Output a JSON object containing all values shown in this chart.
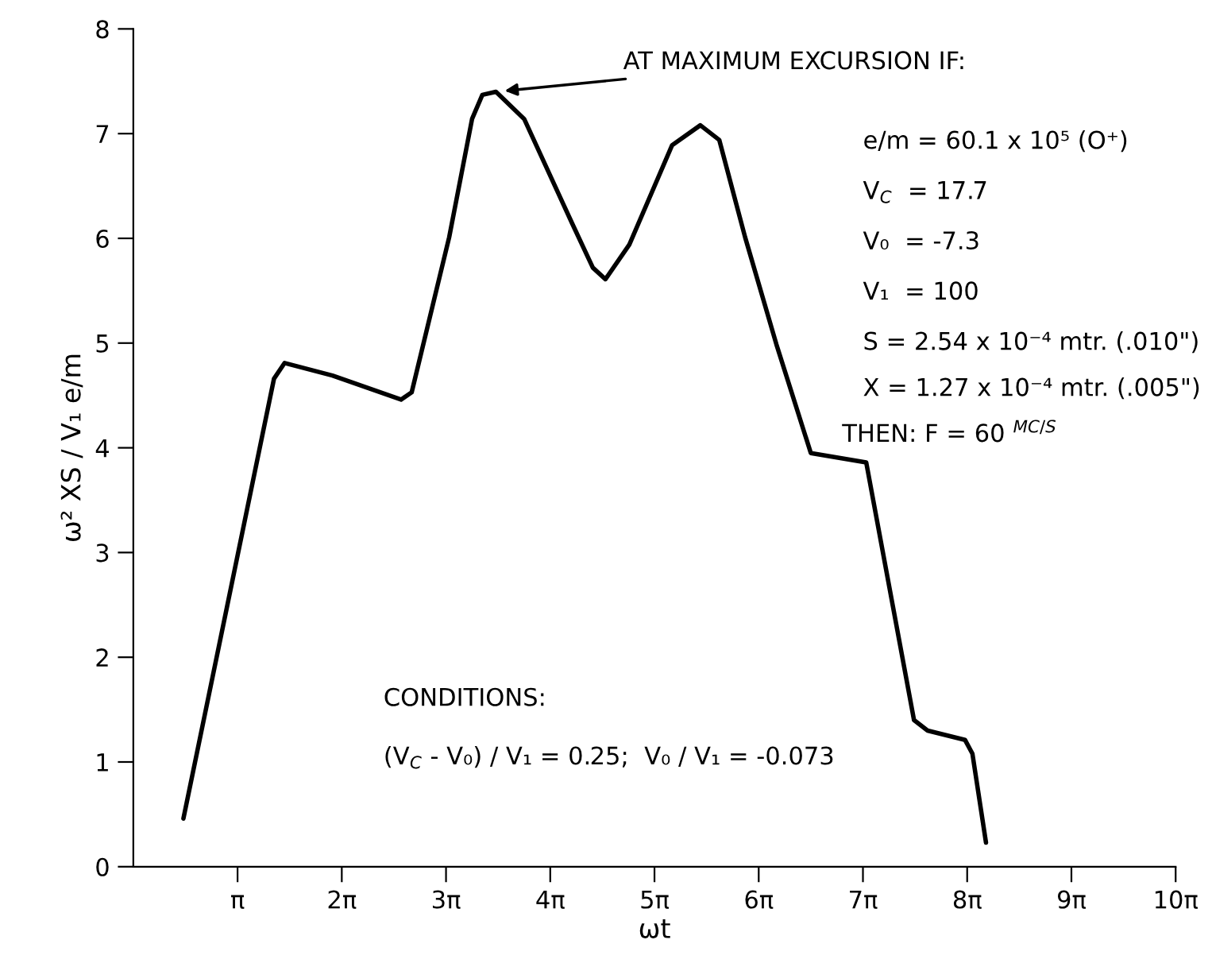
{
  "chart_data": {
    "type": "line",
    "xlabel": "ωt",
    "ylabel": "ω² XS / V₁ e/m",
    "x": [
      1.51,
      4.24,
      4.56,
      6.0,
      8.07,
      8.39,
      9.52,
      10.21,
      10.52,
      10.93,
      11.78,
      13.23,
      13.85,
      14.23,
      14.95,
      16.24,
      17.09,
      17.66,
      18.44,
      19.38,
      20.42,
      22.09,
      23.53,
      23.94,
      25.07,
      25.29,
      25.7
    ],
    "series": [
      {
        "color": "#000000",
        "values": [
          0.46,
          4.66,
          4.81,
          4.69,
          4.46,
          4.53,
          6.01,
          7.14,
          7.37,
          7.4,
          7.14,
          6.14,
          5.72,
          5.61,
          5.94,
          6.89,
          7.08,
          6.94,
          6.01,
          4.99,
          3.95,
          3.86,
          1.4,
          1.3,
          1.21,
          1.08,
          0.23
        ]
      }
    ],
    "xlim": [
      0,
      31.4159
    ],
    "xticks": [
      {
        "value": 3.1416,
        "label": "π"
      },
      {
        "value": 6.2832,
        "label": "2π"
      },
      {
        "value": 9.4248,
        "label": "3π"
      },
      {
        "value": 12.5664,
        "label": "4π"
      },
      {
        "value": 15.708,
        "label": "5π"
      },
      {
        "value": 18.8496,
        "label": "6π"
      },
      {
        "value": 21.9911,
        "label": "7π"
      },
      {
        "value": 25.1327,
        "label": "8π"
      },
      {
        "value": 28.2743,
        "label": "9π"
      },
      {
        "value": 31.4159,
        "label": "10π"
      }
    ],
    "ylim": [
      0,
      8
    ],
    "yticks": [
      0,
      1,
      2,
      3,
      4,
      5,
      6,
      7,
      8
    ],
    "grid": false,
    "legend": false,
    "marker": "none",
    "line_style": "solid",
    "annotations": [
      {
        "text": "AT MAXIMUM EXCURSION IF:",
        "x": 10.93,
        "y": 7.4
      },
      "e/m = 60.1 x 10⁵ (O⁺)",
      "V$_{C}$  = 17.7",
      "V₀  = -7.3",
      "V₁  = 100",
      "S = 2.54 x 10⁻⁴ mtr. (.010\")",
      "X = 1.27 x 10⁻⁴ mtr. (.005\")",
      "THEN: F = 60 $^{MC/S}$",
      "CONDITIONS:",
      "(V$_{C}$ - V₀) / V₁ = 0.25;  V₀ / V₁ = -0.073"
    ]
  }
}
